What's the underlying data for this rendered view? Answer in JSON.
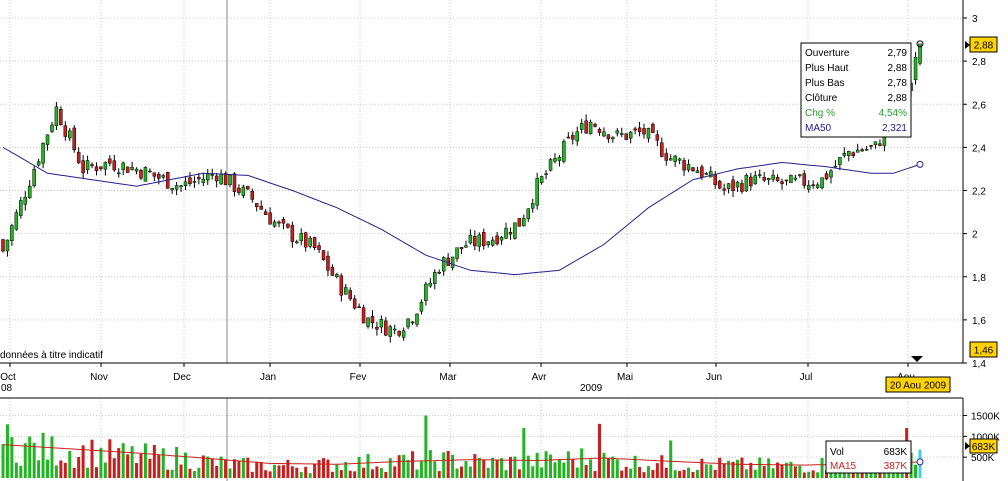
{
  "chart_data": [
    {
      "type": "candlestick",
      "title": "",
      "disclaimer": "données à titre indicatif",
      "x_labels": [
        "Oct",
        "Nov",
        "Dec",
        "Jan",
        "Fev",
        "Mar",
        "Avr",
        "Mai",
        "Jun",
        "Jul",
        "Aou"
      ],
      "year_labels": [
        "08",
        "2009"
      ],
      "y_ticks": [
        "1,4",
        "1,6",
        "1,8",
        "2",
        "2,2",
        "2,4",
        "2,6",
        "2,8",
        "3"
      ],
      "ylim": [
        1.4,
        3.0
      ],
      "last_price_label": "2,88",
      "low_price_label": "1,46",
      "date_label": "20 Aou 2009",
      "ma50_last": 2.321,
      "close_anchors": [
        {
          "i": 0,
          "close": 1.92
        },
        {
          "i": 6,
          "close": 2.25
        },
        {
          "i": 12,
          "close": 2.58
        },
        {
          "i": 18,
          "close": 2.3
        },
        {
          "i": 24,
          "close": 2.33
        },
        {
          "i": 30,
          "close": 2.3
        },
        {
          "i": 40,
          "close": 2.22
        },
        {
          "i": 48,
          "close": 2.28
        },
        {
          "i": 56,
          "close": 2.16
        },
        {
          "i": 62,
          "close": 2.03
        },
        {
          "i": 70,
          "close": 1.93
        },
        {
          "i": 76,
          "close": 1.75
        },
        {
          "i": 82,
          "close": 1.6
        },
        {
          "i": 88,
          "close": 1.55
        },
        {
          "i": 92,
          "close": 1.62
        },
        {
          "i": 98,
          "close": 1.85
        },
        {
          "i": 104,
          "close": 1.95
        },
        {
          "i": 110,
          "close": 1.98
        },
        {
          "i": 116,
          "close": 2.05
        },
        {
          "i": 120,
          "close": 2.22
        },
        {
          "i": 128,
          "close": 2.45
        },
        {
          "i": 132,
          "close": 2.52
        },
        {
          "i": 138,
          "close": 2.45
        },
        {
          "i": 144,
          "close": 2.47
        },
        {
          "i": 150,
          "close": 2.35
        },
        {
          "i": 156,
          "close": 2.3
        },
        {
          "i": 162,
          "close": 2.2
        },
        {
          "i": 168,
          "close": 2.25
        },
        {
          "i": 176,
          "close": 2.23
        },
        {
          "i": 184,
          "close": 2.25
        },
        {
          "i": 190,
          "close": 2.38
        },
        {
          "i": 196,
          "close": 2.4
        },
        {
          "i": 200,
          "close": 2.55
        },
        {
          "i": 204,
          "close": 2.7
        },
        {
          "i": 206,
          "close": 2.88
        }
      ],
      "ma50_anchors": [
        {
          "i": 0,
          "v": 2.4
        },
        {
          "i": 10,
          "v": 2.28
        },
        {
          "i": 20,
          "v": 2.25
        },
        {
          "i": 30,
          "v": 2.22
        },
        {
          "i": 45,
          "v": 2.28
        },
        {
          "i": 55,
          "v": 2.27
        },
        {
          "i": 65,
          "v": 2.2
        },
        {
          "i": 75,
          "v": 2.12
        },
        {
          "i": 85,
          "v": 2.02
        },
        {
          "i": 95,
          "v": 1.9
        },
        {
          "i": 105,
          "v": 1.83
        },
        {
          "i": 115,
          "v": 1.81
        },
        {
          "i": 125,
          "v": 1.83
        },
        {
          "i": 135,
          "v": 1.95
        },
        {
          "i": 145,
          "v": 2.12
        },
        {
          "i": 155,
          "v": 2.25
        },
        {
          "i": 165,
          "v": 2.3
        },
        {
          "i": 175,
          "v": 2.33
        },
        {
          "i": 185,
          "v": 2.31
        },
        {
          "i": 195,
          "v": 2.28
        },
        {
          "i": 200,
          "v": 2.28
        },
        {
          "i": 206,
          "v": 2.321
        }
      ],
      "info_box": [
        {
          "label": "Ouverture",
          "value": "2,79",
          "color": "#000000"
        },
        {
          "label": "Plus Haut",
          "value": "2,88",
          "color": "#000000"
        },
        {
          "label": "Plus Bas",
          "value": "2,78",
          "color": "#000000"
        },
        {
          "label": "Clôture",
          "value": "2,88",
          "color": "#000000"
        },
        {
          "label": "Chg %",
          "value": "4,54%",
          "color": "#2a9d2a"
        },
        {
          "label": "MA50",
          "value": "2,321",
          "color": "#1c1c8c"
        }
      ],
      "colors": {
        "up": "#22b422",
        "down": "#c81e1e",
        "ma": "#22228c",
        "highlight": "#ffd200"
      }
    },
    {
      "type": "bar",
      "title": "",
      "y_ticks": [
        "500K",
        "1000K",
        "1500K"
      ],
      "ylim": [
        0,
        1800
      ],
      "last_volume_label": "683K",
      "volume_anchors": [
        {
          "i": 0,
          "v": 900
        },
        {
          "i": 10,
          "v": 700
        },
        {
          "i": 20,
          "v": 650
        },
        {
          "i": 30,
          "v": 550
        },
        {
          "i": 40,
          "v": 500
        },
        {
          "i": 50,
          "v": 350
        },
        {
          "i": 60,
          "v": 300
        },
        {
          "i": 70,
          "v": 320
        },
        {
          "i": 80,
          "v": 380
        },
        {
          "i": 90,
          "v": 420
        },
        {
          "i": 100,
          "v": 450
        },
        {
          "i": 110,
          "v": 380
        },
        {
          "i": 120,
          "v": 420
        },
        {
          "i": 130,
          "v": 500
        },
        {
          "i": 140,
          "v": 400
        },
        {
          "i": 150,
          "v": 350
        },
        {
          "i": 160,
          "v": 330
        },
        {
          "i": 170,
          "v": 320
        },
        {
          "i": 180,
          "v": 300
        },
        {
          "i": 190,
          "v": 400
        },
        {
          "i": 200,
          "v": 600
        },
        {
          "i": 206,
          "v": 683
        }
      ],
      "spikes": [
        {
          "i": 95,
          "v": 1500
        },
        {
          "i": 117,
          "v": 1200
        },
        {
          "i": 134,
          "v": 1300
        },
        {
          "i": 203,
          "v": 1200
        },
        {
          "i": 150,
          "v": 900
        }
      ],
      "ma15_anchors": [
        {
          "i": 0,
          "v": 800
        },
        {
          "i": 15,
          "v": 700
        },
        {
          "i": 30,
          "v": 600
        },
        {
          "i": 45,
          "v": 480
        },
        {
          "i": 60,
          "v": 350
        },
        {
          "i": 75,
          "v": 330
        },
        {
          "i": 90,
          "v": 400
        },
        {
          "i": 105,
          "v": 440
        },
        {
          "i": 120,
          "v": 420
        },
        {
          "i": 135,
          "v": 480
        },
        {
          "i": 150,
          "v": 400
        },
        {
          "i": 165,
          "v": 330
        },
        {
          "i": 180,
          "v": 310
        },
        {
          "i": 195,
          "v": 340
        },
        {
          "i": 206,
          "v": 387
        }
      ],
      "legend_box": [
        {
          "label": "Vol",
          "value": "683K",
          "color": "#000000"
        },
        {
          "label": "MA15",
          "value": "387K",
          "color": "#c81e1e"
        }
      ]
    }
  ]
}
